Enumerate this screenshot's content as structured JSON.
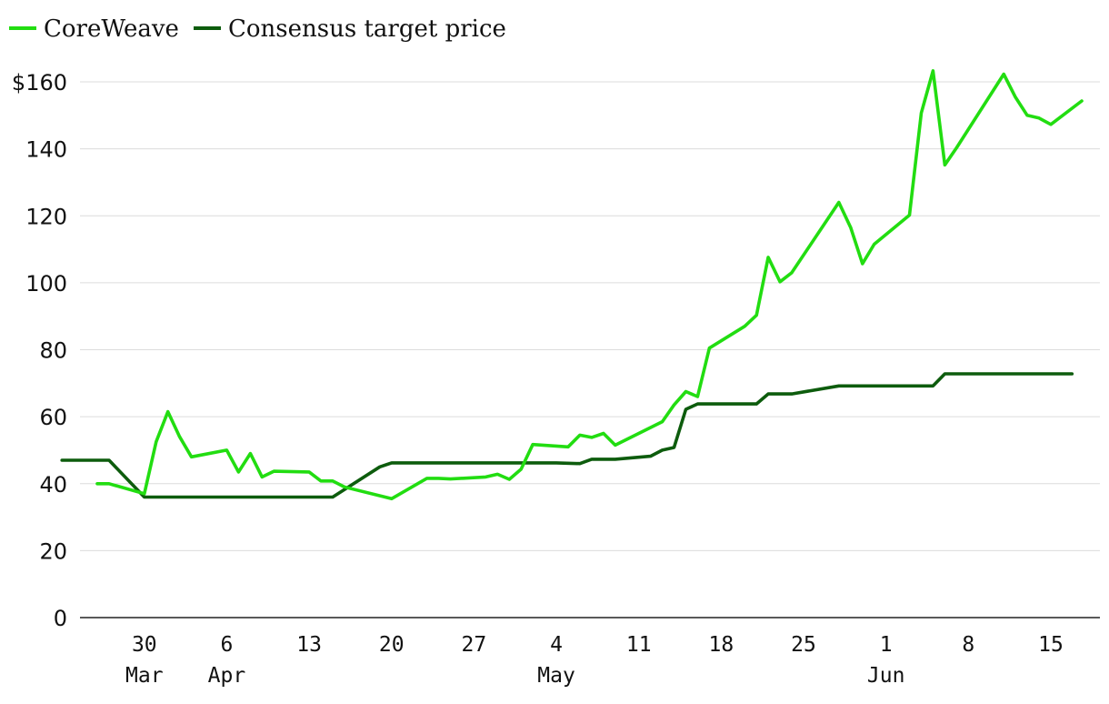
{
  "chart_data": {
    "type": "line",
    "title": "",
    "xlabel": "",
    "ylabel": "",
    "ylim": [
      0,
      160
    ],
    "y_ticks": [
      {
        "value": 0,
        "label": "0"
      },
      {
        "value": 20,
        "label": "20"
      },
      {
        "value": 40,
        "label": "40"
      },
      {
        "value": 60,
        "label": "60"
      },
      {
        "value": 80,
        "label": "80"
      },
      {
        "value": 100,
        "label": "100"
      },
      {
        "value": 120,
        "label": "120"
      },
      {
        "value": 140,
        "label": "140"
      },
      {
        "value": 160,
        "label": "$160"
      }
    ],
    "x_ticks": [
      {
        "day": 4,
        "day_label": "30",
        "month_label": "Mar"
      },
      {
        "day": 11,
        "day_label": "6",
        "month_label": "Apr"
      },
      {
        "day": 18,
        "day_label": "13",
        "month_label": ""
      },
      {
        "day": 25,
        "day_label": "20",
        "month_label": ""
      },
      {
        "day": 32,
        "day_label": "27",
        "month_label": ""
      },
      {
        "day": 39,
        "day_label": "4",
        "month_label": "May"
      },
      {
        "day": 46,
        "day_label": "11",
        "month_label": ""
      },
      {
        "day": 53,
        "day_label": "18",
        "month_label": ""
      },
      {
        "day": 60,
        "day_label": "25",
        "month_label": ""
      },
      {
        "day": 67,
        "day_label": "1",
        "month_label": "Jun"
      },
      {
        "day": 74,
        "day_label": "8",
        "month_label": ""
      },
      {
        "day": 81,
        "day_label": "15",
        "month_label": ""
      }
    ],
    "x_range": [
      -3.0,
      82.8
    ],
    "grid": true,
    "legend_position": "top-left",
    "series": [
      {
        "name": "CoreWeave",
        "color": "#22dd11",
        "points": [
          [
            0,
            40
          ],
          [
            1,
            40
          ],
          [
            4,
            37
          ],
          [
            5,
            52.5
          ],
          [
            6,
            61.5
          ],
          [
            7,
            54
          ],
          [
            8,
            48
          ],
          [
            11,
            50
          ],
          [
            12,
            43.5
          ],
          [
            13,
            49
          ],
          [
            14,
            42
          ],
          [
            15,
            43.7
          ],
          [
            18,
            43.5
          ],
          [
            19,
            40.8
          ],
          [
            20,
            40.8
          ],
          [
            21,
            39
          ],
          [
            25,
            35.5
          ],
          [
            28,
            41.6
          ],
          [
            29,
            41.6
          ],
          [
            30,
            41.4
          ],
          [
            33,
            42
          ],
          [
            34,
            42.8
          ],
          [
            35,
            41.3
          ],
          [
            36,
            44.3
          ],
          [
            37,
            51.7
          ],
          [
            40,
            51
          ],
          [
            41,
            54.5
          ],
          [
            42,
            53.8
          ],
          [
            43,
            55
          ],
          [
            44,
            51.5
          ],
          [
            48,
            58.5
          ],
          [
            49,
            63.5
          ],
          [
            50,
            67.5
          ],
          [
            51,
            66
          ],
          [
            52,
            80.5
          ],
          [
            55,
            87
          ],
          [
            56,
            90.3
          ],
          [
            57,
            107.6
          ],
          [
            58,
            100.3
          ],
          [
            59,
            103
          ],
          [
            63,
            124
          ],
          [
            64,
            116.5
          ],
          [
            65,
            105.7
          ],
          [
            66,
            111.5
          ],
          [
            69,
            120.2
          ],
          [
            70,
            150.7
          ],
          [
            71,
            163.3
          ],
          [
            72,
            135.2
          ],
          [
            73,
            140.3
          ],
          [
            77,
            162.3
          ],
          [
            78,
            155.4
          ],
          [
            79,
            150
          ],
          [
            80,
            149.2
          ],
          [
            81,
            147.3
          ],
          [
            85,
            154.3
          ]
        ]
      },
      {
        "name": "Consensus target price",
        "color": "#0d5c0d",
        "points": [
          [
            -3,
            47
          ],
          [
            1,
            47
          ],
          [
            4,
            36
          ],
          [
            20,
            36
          ],
          [
            24,
            45
          ],
          [
            25,
            46.2
          ],
          [
            39,
            46.2
          ],
          [
            41,
            46
          ],
          [
            42,
            47.3
          ],
          [
            44,
            47.3
          ],
          [
            47,
            48.2
          ],
          [
            48,
            50
          ],
          [
            49,
            50.8
          ],
          [
            50,
            62.2
          ],
          [
            51,
            63.8
          ],
          [
            56,
            63.8
          ],
          [
            57,
            66.8
          ],
          [
            59,
            66.8
          ],
          [
            63,
            69.2
          ],
          [
            71,
            69.2
          ],
          [
            72,
            72.8
          ],
          [
            82.8,
            72.8
          ]
        ]
      }
    ]
  }
}
